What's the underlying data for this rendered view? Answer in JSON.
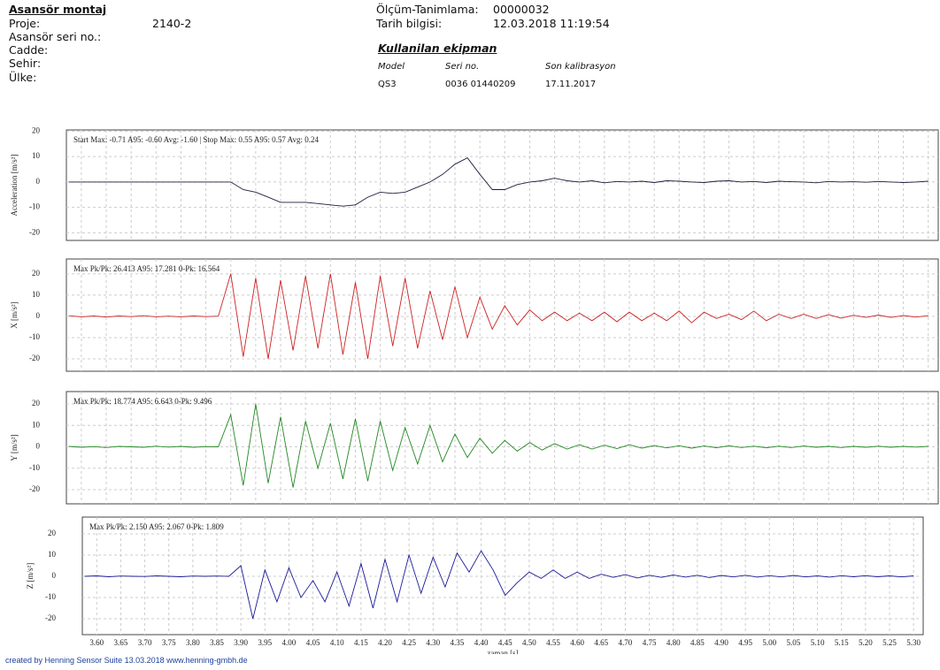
{
  "header": {
    "title": "Asansör montaj",
    "fields": [
      {
        "label": "Proje:",
        "value": "2140-2"
      },
      {
        "label": "Asansör seri no.:"
      },
      {
        "label": "Cadde:"
      },
      {
        "label": "Sehir:"
      },
      {
        "label": "Ülke:"
      }
    ],
    "measurement": [
      {
        "label": "Ölçüm-Tanimlama:",
        "value": "00000032"
      },
      {
        "label": "Tarih bilgisi:",
        "value": "12.03.2018 11:19:54"
      }
    ],
    "equipment": {
      "title": "Kullanilan ekipman",
      "columns": [
        "Model",
        "Seri no.",
        "Son kalibrasyon"
      ],
      "row": [
        "QS3",
        "0036 01440209",
        "17.11.2017"
      ]
    }
  },
  "footer": "created by Henning Sensor Suite 13.03.2018 www.henning-gmbh.de",
  "chart_data": [
    {
      "type": "line",
      "ylabel": "Acceleration [m/s²]",
      "annotation": "Start Max: -0.71 A95: -0.60 Avg: -1.60 | Stop Max: 0.55 A95: 0.57 Avg: 0.24",
      "color": "#1c1c3c",
      "grid": true,
      "xlim": [
        3.57,
        5.32
      ],
      "ylim": [
        -23,
        20.5
      ],
      "yticks": [
        -20,
        -10,
        0,
        10,
        20
      ],
      "x": [
        3.575,
        3.6,
        3.625,
        3.65,
        3.675,
        3.7,
        3.725,
        3.75,
        3.775,
        3.8,
        3.825,
        3.85,
        3.875,
        3.9,
        3.925,
        3.95,
        3.975,
        4,
        4.025,
        4.05,
        4.075,
        4.1,
        4.125,
        4.15,
        4.175,
        4.2,
        4.225,
        4.25,
        4.275,
        4.3,
        4.325,
        4.35,
        4.375,
        4.4,
        4.425,
        4.45,
        4.475,
        4.5,
        4.525,
        4.55,
        4.575,
        4.6,
        4.625,
        4.65,
        4.675,
        4.7,
        4.725,
        4.75,
        4.775,
        4.8,
        4.825,
        4.85,
        4.875,
        4.9,
        4.925,
        4.95,
        4.975,
        5,
        5.025,
        5.05,
        5.075,
        5.1,
        5.125,
        5.15,
        5.175,
        5.2,
        5.225,
        5.25,
        5.275,
        5.3
      ],
      "values": [
        0,
        0,
        0,
        0,
        0,
        0,
        0,
        0,
        0,
        0,
        0,
        0,
        0,
        0,
        -3,
        -4,
        -6,
        -8,
        -8,
        -8,
        -8.5,
        -9,
        -9.5,
        -9,
        -6,
        -4,
        -4.5,
        -4,
        -2,
        0,
        3,
        7,
        9.5,
        3,
        -3,
        -3,
        -1,
        0,
        0.5,
        1.5,
        0.5,
        0,
        0.5,
        -0.3,
        0.2,
        0,
        0.3,
        -0.2,
        0.5,
        0.3,
        0,
        -0.2,
        0.3,
        0.5,
        0,
        0.2,
        -0.2,
        0.3,
        0.1,
        0,
        -0.3,
        0.2,
        0,
        0.1,
        -0.1,
        0.2,
        0,
        -0.2,
        0,
        0.3
      ]
    },
    {
      "type": "line",
      "ylabel": "X [m/s²]",
      "annotation": "Max Pk/Pk: 26.413 A95: 17.281 0-Pk: 16.564",
      "color": "#cc2222",
      "grid": true,
      "xlim": [
        3.57,
        5.32
      ],
      "ylim": [
        -25.8,
        27
      ],
      "yticks": [
        -20,
        -10,
        0,
        10,
        20
      ],
      "x": [
        3.575,
        3.6,
        3.625,
        3.65,
        3.675,
        3.7,
        3.725,
        3.75,
        3.775,
        3.8,
        3.825,
        3.85,
        3.875,
        3.9,
        3.925,
        3.95,
        3.975,
        4,
        4.025,
        4.05,
        4.075,
        4.1,
        4.125,
        4.15,
        4.175,
        4.2,
        4.225,
        4.25,
        4.275,
        4.3,
        4.325,
        4.35,
        4.375,
        4.4,
        4.425,
        4.45,
        4.475,
        4.5,
        4.525,
        4.55,
        4.575,
        4.6,
        4.625,
        4.65,
        4.675,
        4.7,
        4.725,
        4.75,
        4.775,
        4.8,
        4.825,
        4.85,
        4.875,
        4.9,
        4.925,
        4.95,
        4.975,
        5,
        5.025,
        5.05,
        5.075,
        5.1,
        5.125,
        5.15,
        5.175,
        5.2,
        5.225,
        5.25,
        5.275,
        5.3
      ],
      "values": [
        0.3,
        -0.2,
        0.2,
        -0.3,
        0.2,
        -0.1,
        0.3,
        -0.2,
        0.1,
        -0.2,
        0.2,
        -0.1,
        0.1,
        20,
        -19,
        18,
        -20,
        17,
        -16,
        19,
        -15,
        20,
        -18,
        16,
        -20,
        19,
        -14,
        18,
        -15,
        12,
        -11,
        14,
        -10,
        9,
        -6,
        5,
        -4,
        3,
        -2,
        2,
        -2,
        1.5,
        -2,
        2,
        -2.5,
        2,
        -2,
        1.5,
        -2,
        2.5,
        -3,
        2,
        -1,
        1,
        -1.5,
        2.5,
        -2,
        1,
        -1,
        1,
        -1,
        0.8,
        -0.8,
        0.5,
        -0.5,
        0.6,
        -0.5,
        0.4,
        -0.3,
        0.3
      ]
    },
    {
      "type": "line",
      "ylabel": "Y [m/s²]",
      "annotation": "Max Pk/Pk: 18.774 A95: 6.643 0-Pk: 9.496",
      "color": "#228822",
      "grid": true,
      "xlim": [
        3.57,
        5.32
      ],
      "ylim": [
        -26.6,
        25.8
      ],
      "yticks": [
        -20,
        -10,
        0,
        10,
        20
      ],
      "x": [
        3.575,
        3.6,
        3.625,
        3.65,
        3.675,
        3.7,
        3.725,
        3.75,
        3.775,
        3.8,
        3.825,
        3.85,
        3.875,
        3.9,
        3.925,
        3.95,
        3.975,
        4,
        4.025,
        4.05,
        4.075,
        4.1,
        4.125,
        4.15,
        4.175,
        4.2,
        4.225,
        4.25,
        4.275,
        4.3,
        4.325,
        4.35,
        4.375,
        4.4,
        4.425,
        4.45,
        4.475,
        4.5,
        4.525,
        4.55,
        4.575,
        4.6,
        4.625,
        4.65,
        4.675,
        4.7,
        4.725,
        4.75,
        4.775,
        4.8,
        4.825,
        4.85,
        4.875,
        4.9,
        4.925,
        4.95,
        4.975,
        5,
        5.025,
        5.05,
        5.075,
        5.1,
        5.125,
        5.15,
        5.175,
        5.2,
        5.225,
        5.25,
        5.275,
        5.3
      ],
      "values": [
        0.2,
        -0.2,
        0.1,
        -0.3,
        0.2,
        0,
        -0.2,
        0.3,
        -0.1,
        0.2,
        -0.2,
        0.1,
        0,
        15,
        -18,
        20,
        -17,
        14,
        -19,
        12,
        -10,
        11,
        -15,
        13,
        -16,
        12,
        -11,
        9,
        -8,
        10,
        -7,
        6,
        -5,
        4,
        -3,
        3,
        -2,
        2,
        -1.5,
        1.5,
        -1,
        1,
        -1,
        0.8,
        -0.8,
        1,
        -0.6,
        0.6,
        -0.5,
        0.5,
        -0.6,
        0.4,
        -0.4,
        0.5,
        -0.3,
        0.3,
        -0.4,
        0.3,
        -0.3,
        0.4,
        -0.2,
        0.2,
        -0.3,
        0.2,
        -0.2,
        0.3,
        -0.2,
        0.2,
        -0.1,
        0.2
      ]
    },
    {
      "type": "line",
      "ylabel": "Z [m/s²]",
      "xlabel": "zaman [s]",
      "annotation": "Max Pk/Pk: 2.150 A95: 2.067 0-Pk: 1.809",
      "color": "#1a1a99",
      "grid": true,
      "xlim": [
        3.57,
        5.32
      ],
      "ylim": [
        -27.5,
        27.9
      ],
      "yticks": [
        -20,
        -10,
        0,
        10,
        20
      ],
      "xticks": [
        {
          "value": 3.6,
          "label": "3.60"
        },
        {
          "value": 3.65,
          "label": "3.65"
        },
        {
          "value": 3.7,
          "label": "3.70"
        },
        {
          "value": 3.75,
          "label": "3.75"
        },
        {
          "value": 3.8,
          "label": "3.80"
        },
        {
          "value": 3.85,
          "label": "3.85"
        },
        {
          "value": 3.9,
          "label": "3.90"
        },
        {
          "value": 3.95,
          "label": "3.95"
        },
        {
          "value": 4,
          "label": "4.00"
        },
        {
          "value": 4.05,
          "label": "4.05"
        },
        {
          "value": 4.1,
          "label": "4.10"
        },
        {
          "value": 4.15,
          "label": "4.15"
        },
        {
          "value": 4.2,
          "label": "4.20"
        },
        {
          "value": 4.25,
          "label": "4.25"
        },
        {
          "value": 4.3,
          "label": "4.30"
        },
        {
          "value": 4.35,
          "label": "4.35"
        },
        {
          "value": 4.4,
          "label": "4.40"
        },
        {
          "value": 4.45,
          "label": "4.45"
        },
        {
          "value": 4.5,
          "label": "4.50"
        },
        {
          "value": 4.55,
          "label": "4.55"
        },
        {
          "value": 4.6,
          "label": "4.60"
        },
        {
          "value": 4.65,
          "label": "4.65"
        },
        {
          "value": 4.7,
          "label": "4.70"
        },
        {
          "value": 4.75,
          "label": "4.75"
        },
        {
          "value": 4.8,
          "label": "4.80"
        },
        {
          "value": 4.85,
          "label": "4.85"
        },
        {
          "value": 4.9,
          "label": "4.90"
        },
        {
          "value": 4.95,
          "label": "4.95"
        },
        {
          "value": 5,
          "label": "5.00"
        },
        {
          "value": 5.05,
          "label": "5.05"
        },
        {
          "value": 5.1,
          "label": "5.10"
        },
        {
          "value": 5.15,
          "label": "5.15"
        },
        {
          "value": 5.2,
          "label": "5.20"
        },
        {
          "value": 5.25,
          "label": "5.25"
        },
        {
          "value": 5.3,
          "label": "5.30"
        }
      ],
      "x": [
        3.575,
        3.6,
        3.625,
        3.65,
        3.675,
        3.7,
        3.725,
        3.75,
        3.775,
        3.8,
        3.825,
        3.85,
        3.875,
        3.9,
        3.925,
        3.95,
        3.975,
        4,
        4.025,
        4.05,
        4.075,
        4.1,
        4.125,
        4.15,
        4.175,
        4.2,
        4.225,
        4.25,
        4.275,
        4.3,
        4.325,
        4.35,
        4.375,
        4.4,
        4.425,
        4.45,
        4.475,
        4.5,
        4.525,
        4.55,
        4.575,
        4.6,
        4.625,
        4.65,
        4.675,
        4.7,
        4.725,
        4.75,
        4.775,
        4.8,
        4.825,
        4.85,
        4.875,
        4.9,
        4.925,
        4.95,
        4.975,
        5,
        5.025,
        5.05,
        5.075,
        5.1,
        5.125,
        5.15,
        5.175,
        5.2,
        5.225,
        5.25,
        5.275,
        5.3
      ],
      "values": [
        0,
        0.2,
        -0.2,
        0.1,
        0,
        -0.1,
        0.2,
        0,
        -0.2,
        0.1,
        0,
        0.1,
        0,
        5,
        -20,
        3,
        -12,
        4,
        -10,
        -2,
        -12,
        2,
        -14,
        6,
        -15,
        8,
        -12,
        10,
        -8,
        9,
        -5,
        11,
        2,
        12,
        3,
        -9,
        -3,
        2,
        -1,
        3,
        -1,
        2,
        -1,
        1,
        -0.5,
        0.8,
        -0.8,
        0.5,
        -0.5,
        0.6,
        -0.4,
        0.5,
        -0.6,
        0.4,
        -0.3,
        0.5,
        -0.4,
        0.3,
        -0.3,
        0.4,
        -0.3,
        0.2,
        -0.4,
        0.3,
        -0.2,
        0.3,
        -0.2,
        0.2,
        -0.3,
        0.2
      ]
    }
  ]
}
